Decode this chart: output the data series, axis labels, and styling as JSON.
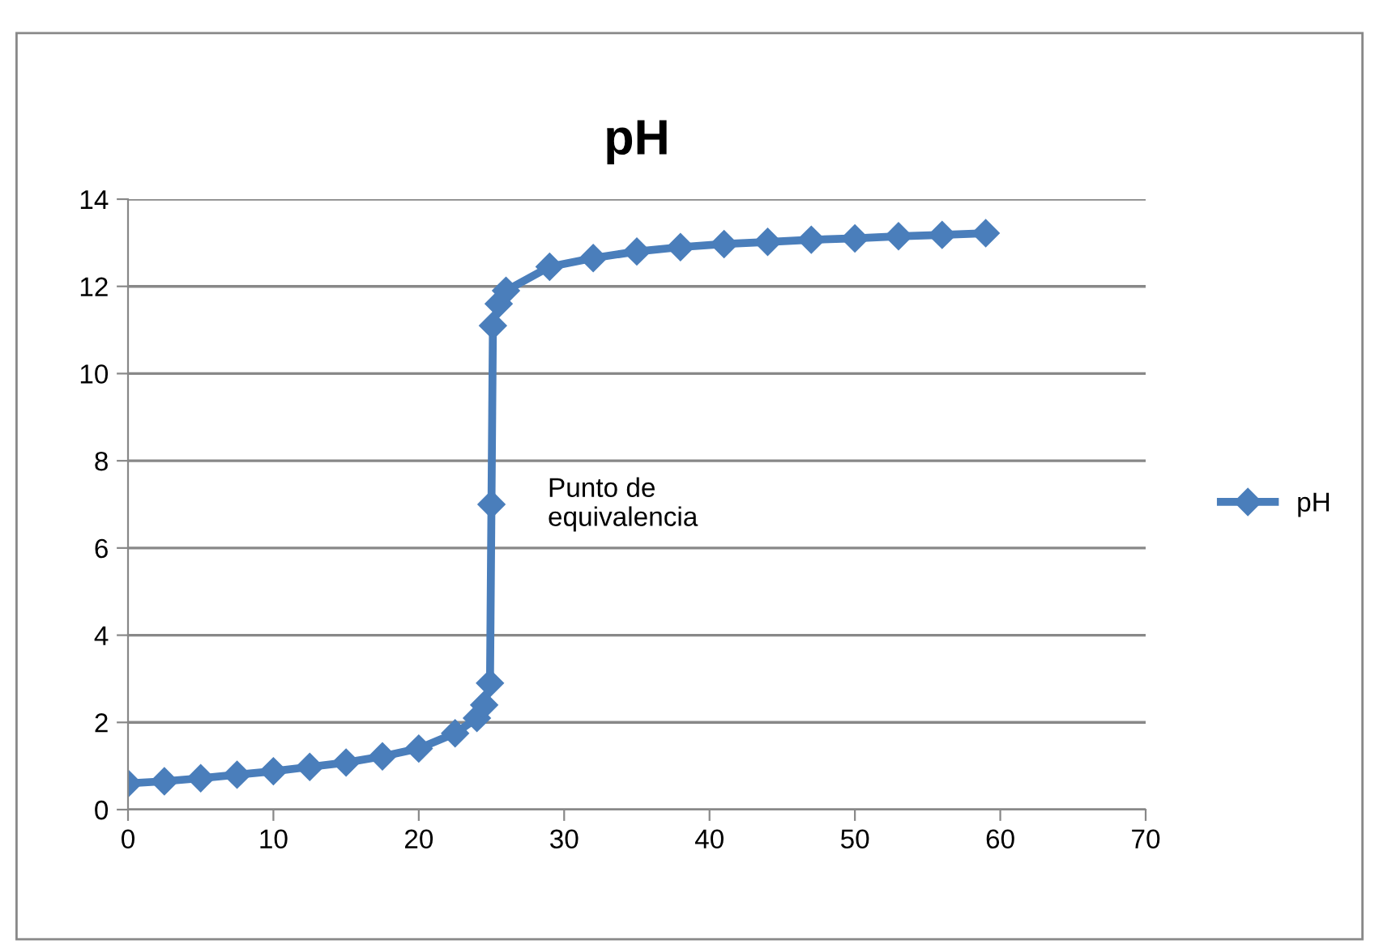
{
  "chart_data": {
    "type": "line",
    "title": "pH",
    "series": [
      {
        "name": "pH",
        "color": "#4a7ebb",
        "x": [
          0,
          2.5,
          5,
          7.5,
          10,
          12.5,
          15,
          17.5,
          20,
          22.5,
          24,
          24.5,
          24.9,
          25,
          25.1,
          25.5,
          26,
          29,
          32,
          35,
          38,
          41,
          44,
          47,
          50,
          53,
          56,
          59
        ],
        "values": [
          0.6,
          0.65,
          0.72,
          0.8,
          0.88,
          0.98,
          1.08,
          1.22,
          1.4,
          1.75,
          2.1,
          2.4,
          2.9,
          7,
          11.1,
          11.6,
          11.9,
          12.45,
          12.65,
          12.8,
          12.9,
          12.97,
          13.02,
          13.07,
          13.1,
          13.15,
          13.18,
          13.22
        ]
      }
    ],
    "annotations": [
      {
        "text": "Punto de\nequivalencia",
        "x": 25,
        "y": 7
      }
    ],
    "xlim": [
      0,
      70
    ],
    "xticks": [
      0,
      10,
      20,
      30,
      40,
      50,
      60,
      70
    ],
    "ylim": [
      0,
      14
    ],
    "yticks": [
      0,
      2,
      4,
      6,
      8,
      10,
      12,
      14
    ],
    "grid": "y",
    "legend": "right",
    "marker": "diamond",
    "line_style": "solid"
  }
}
